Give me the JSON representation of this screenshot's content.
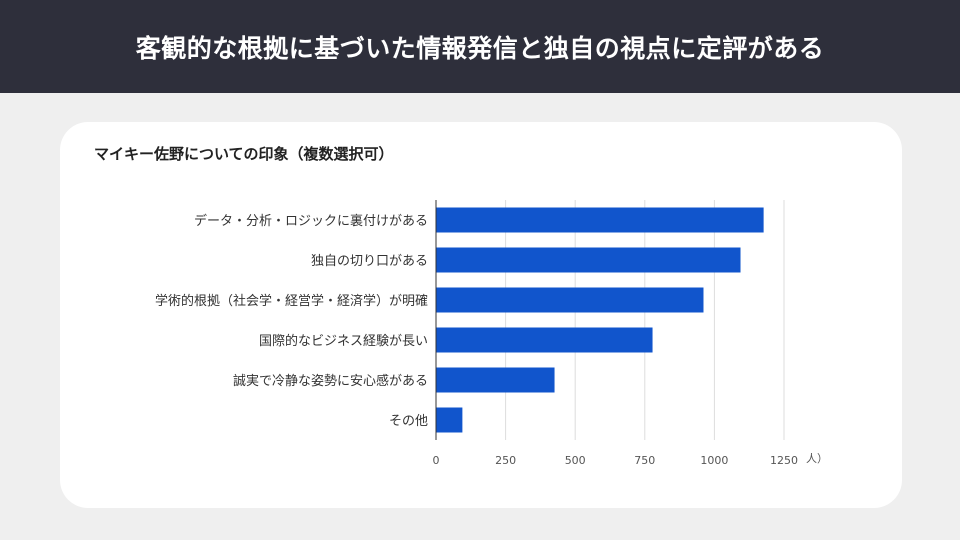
{
  "header": {
    "title": "客観的な根拠に基づいた情報発信と独自の視点に定評がある"
  },
  "chart_data": {
    "type": "bar",
    "orientation": "horizontal",
    "title": "マイキー佐野についての印象（複数選択可）",
    "categories": [
      "データ・分析・ロジックに裏付けがある",
      "独自の切り口がある",
      "学術的根拠（社会学・経営学・経済学）が明確",
      "国際的なビジネス経験が長い",
      "誠実で冷静な姿勢に安心感がある",
      "その他"
    ],
    "values": [
      1175,
      1092,
      959,
      776,
      424,
      93
    ],
    "xlabel": "人）",
    "xlim": [
      0,
      1250
    ],
    "xticks": [
      "0",
      "250",
      "500",
      "750",
      "1000",
      "1250"
    ],
    "grid": true,
    "bar_color": "#1155cc"
  }
}
